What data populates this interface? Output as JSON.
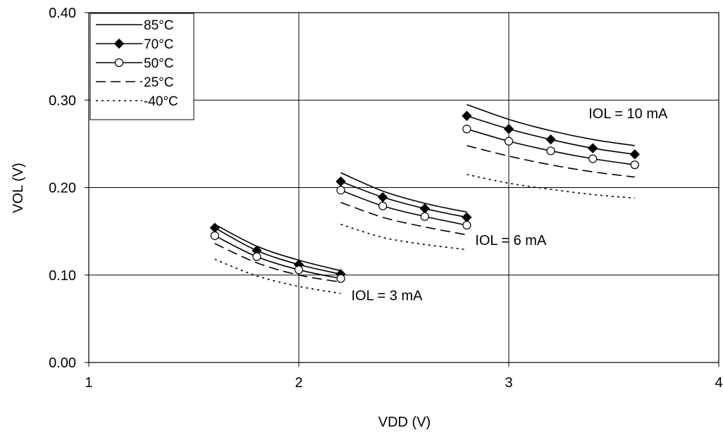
{
  "chart_data": {
    "type": "line",
    "xlabel": "VDD (V)",
    "ylabel": "VOL (V)",
    "xlim": [
      1,
      4
    ],
    "ylim": [
      0,
      0.4
    ],
    "x_ticks": [
      1,
      2,
      3,
      4
    ],
    "x_tick_labels": [
      "1",
      "2",
      "3",
      "4"
    ],
    "y_ticks": [
      0,
      0.1,
      0.2,
      0.3,
      0.4
    ],
    "y_tick_labels": [
      "0.00",
      "0.10",
      "0.20",
      "0.30",
      "0.40"
    ],
    "grid": true,
    "legend_position": "top-left",
    "series": [
      {
        "name": "85°C",
        "style": "solid",
        "marker": "none",
        "color": "#000000",
        "groups": [
          {
            "x": [
              1.6,
              1.8,
              2.0,
              2.2
            ],
            "y": [
              0.158,
              0.133,
              0.117,
              0.105
            ]
          },
          {
            "x": [
              2.2,
              2.4,
              2.6,
              2.8
            ],
            "y": [
              0.217,
              0.196,
              0.182,
              0.172
            ]
          },
          {
            "x": [
              2.8,
              3.0,
              3.2,
              3.4,
              3.6
            ],
            "y": [
              0.295,
              0.278,
              0.265,
              0.255,
              0.248
            ]
          }
        ]
      },
      {
        "name": "70°C",
        "style": "solid",
        "marker": "filled-diamond",
        "color": "#000000",
        "groups": [
          {
            "x": [
              1.6,
              1.8,
              2.0,
              2.2
            ],
            "y": [
              0.154,
              0.128,
              0.112,
              0.101
            ]
          },
          {
            "x": [
              2.2,
              2.4,
              2.6,
              2.8
            ],
            "y": [
              0.207,
              0.189,
              0.176,
              0.166
            ]
          },
          {
            "x": [
              2.8,
              3.0,
              3.2,
              3.4,
              3.6
            ],
            "y": [
              0.282,
              0.267,
              0.255,
              0.245,
              0.238
            ]
          }
        ]
      },
      {
        "name": "50°C",
        "style": "solid",
        "marker": "open-circle",
        "color": "#000000",
        "groups": [
          {
            "x": [
              1.6,
              1.8,
              2.0,
              2.2
            ],
            "y": [
              0.145,
              0.121,
              0.106,
              0.096
            ]
          },
          {
            "x": [
              2.2,
              2.4,
              2.6,
              2.8
            ],
            "y": [
              0.197,
              0.179,
              0.167,
              0.157
            ]
          },
          {
            "x": [
              2.8,
              3.0,
              3.2,
              3.4,
              3.6
            ],
            "y": [
              0.267,
              0.253,
              0.242,
              0.233,
              0.226
            ]
          }
        ]
      },
      {
        "name": "25°C",
        "style": "dashed",
        "marker": "none",
        "color": "#000000",
        "groups": [
          {
            "x": [
              1.6,
              1.8,
              2.0,
              2.2
            ],
            "y": [
              0.136,
              0.114,
              0.1,
              0.092
            ]
          },
          {
            "x": [
              2.2,
              2.4,
              2.6,
              2.8
            ],
            "y": [
              0.183,
              0.166,
              0.155,
              0.146
            ]
          },
          {
            "x": [
              2.8,
              3.0,
              3.2,
              3.4,
              3.6
            ],
            "y": [
              0.248,
              0.236,
              0.226,
              0.218,
              0.212
            ]
          }
        ]
      },
      {
        "name": "-40°C",
        "style": "dotted",
        "marker": "none",
        "color": "#000000",
        "groups": [
          {
            "x": [
              1.6,
              1.8,
              2.0,
              2.2
            ],
            "y": [
              0.118,
              0.099,
              0.087,
              0.079
            ]
          },
          {
            "x": [
              2.2,
              2.4,
              2.6,
              2.8
            ],
            "y": [
              0.158,
              0.143,
              0.135,
              0.129
            ]
          },
          {
            "x": [
              2.8,
              3.0,
              3.2,
              3.4,
              3.6
            ],
            "y": [
              0.215,
              0.205,
              0.198,
              0.192,
              0.188
            ]
          }
        ]
      }
    ],
    "annotations": [
      {
        "text": "IOL = 10 mA",
        "x": 3.38,
        "y": 0.285
      },
      {
        "text": "IOL = 6 mA",
        "x": 2.84,
        "y": 0.14
      },
      {
        "text": "IOL = 3 mA",
        "x": 2.25,
        "y": 0.077
      }
    ]
  }
}
